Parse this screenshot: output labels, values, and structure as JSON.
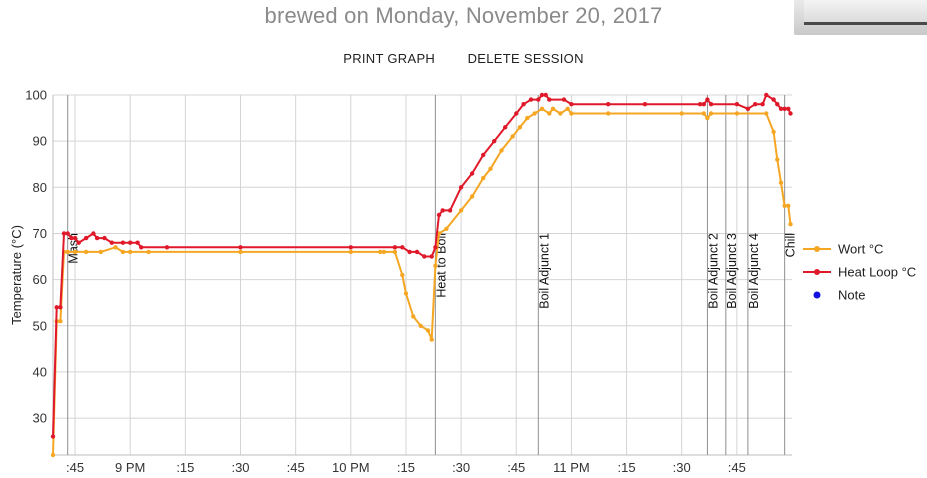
{
  "header": {
    "title": "brewed on Monday, November 20, 2017"
  },
  "actions": {
    "print_label": "PRINT GRAPH",
    "delete_label": "DELETE SESSION"
  },
  "chart_data": {
    "type": "line",
    "ylabel": "Temperature (°C)",
    "ylim": [
      22,
      100
    ],
    "yticks": [
      30,
      40,
      50,
      60,
      70,
      80,
      90,
      100
    ],
    "xlim": [
      "20:39",
      "22:09"
    ],
    "xticks": [
      {
        "t": "20:45",
        "label": ":45"
      },
      {
        "t": "21:00",
        "label": "9 PM"
      },
      {
        "t": "21:15",
        "label": ":15"
      },
      {
        "t": "21:30",
        "label": ":30"
      },
      {
        "t": "21:45",
        "label": ":45"
      },
      {
        "t": "22:00",
        "label": "10 PM"
      },
      {
        "t": "22:15",
        "label": ":15"
      },
      {
        "t": "22:30",
        "label": ":30"
      },
      {
        "t": "22:45",
        "label": ":45"
      },
      {
        "t": "23:00",
        "label": "11 PM"
      },
      {
        "t": "23:15",
        "label": ":15"
      },
      {
        "t": "23:30",
        "label": ":30"
      },
      {
        "t": "23:45",
        "label": ":45"
      }
    ],
    "grid": true,
    "legend_position": "right",
    "legend": [
      {
        "label": "Wort °C",
        "color": "#f5a623",
        "marker": "line-dot"
      },
      {
        "label": "Heat Loop °C",
        "color": "#e0192a",
        "marker": "line-dot"
      },
      {
        "label": "Note",
        "color": "#1010e0",
        "marker": "dot"
      }
    ],
    "annotations": [
      {
        "t": "20:43",
        "label": "Mash"
      },
      {
        "t": "22:23",
        "label": "Heat to Boil"
      },
      {
        "t": "22:51",
        "label": "Boil Adjunct 1"
      },
      {
        "t": "23:37",
        "label": "Boil Adjunct 2"
      },
      {
        "t": "23:42",
        "label": "Boil Adjunct 3"
      },
      {
        "t": "23:48",
        "label": "Boil Adjunct 4"
      },
      {
        "t": "23:58",
        "label": "Chill"
      }
    ],
    "series": [
      {
        "name": "Wort °C",
        "color": "#f5a623",
        "points": [
          [
            "20:39",
            22
          ],
          [
            "20:40",
            51
          ],
          [
            "20:41",
            51
          ],
          [
            "20:42",
            66
          ],
          [
            "20:43",
            66
          ],
          [
            "20:45",
            66
          ],
          [
            "20:48",
            66
          ],
          [
            "20:52",
            66
          ],
          [
            "20:56",
            67
          ],
          [
            "20:58",
            66
          ],
          [
            "21:00",
            66
          ],
          [
            "21:05",
            66
          ],
          [
            "21:30",
            66
          ],
          [
            "22:00",
            66
          ],
          [
            "22:08",
            66
          ],
          [
            "22:09",
            66
          ],
          [
            "22:12",
            66
          ],
          [
            "22:14",
            61
          ],
          [
            "22:15",
            57
          ],
          [
            "22:17",
            52
          ],
          [
            "22:19",
            50
          ],
          [
            "22:21",
            49
          ],
          [
            "22:22",
            47
          ],
          [
            "22:23",
            63
          ],
          [
            "22:24",
            70
          ],
          [
            "22:26",
            71
          ],
          [
            "22:30",
            75
          ],
          [
            "22:33",
            78
          ],
          [
            "22:36",
            82
          ],
          [
            "22:38",
            84
          ],
          [
            "22:41",
            88
          ],
          [
            "22:44",
            91
          ],
          [
            "22:46",
            93
          ],
          [
            "22:48",
            95
          ],
          [
            "22:50",
            96
          ],
          [
            "22:52",
            97
          ],
          [
            "22:54",
            96
          ],
          [
            "22:55",
            97
          ],
          [
            "22:57",
            96
          ],
          [
            "22:59",
            97
          ],
          [
            "23:00",
            96
          ],
          [
            "23:10",
            96
          ],
          [
            "23:30",
            96
          ],
          [
            "23:36",
            96
          ],
          [
            "23:37",
            95
          ],
          [
            "23:38",
            96
          ],
          [
            "23:45",
            96
          ],
          [
            "23:53",
            96
          ],
          [
            "23:55",
            92
          ],
          [
            "23:56",
            86
          ],
          [
            "23:57",
            81
          ],
          [
            "23:58",
            76
          ],
          [
            "23:59",
            76
          ],
          [
            "23:59.6",
            72
          ]
        ]
      },
      {
        "name": "Heat Loop °C",
        "color": "#e0192a",
        "points": [
          [
            "20:39",
            26
          ],
          [
            "20:40",
            54
          ],
          [
            "20:41",
            54
          ],
          [
            "20:42",
            70
          ],
          [
            "20:43",
            70
          ],
          [
            "20:44",
            69
          ],
          [
            "20:45",
            69
          ],
          [
            "20:46",
            68
          ],
          [
            "20:48",
            69
          ],
          [
            "20:50",
            70
          ],
          [
            "20:51",
            69
          ],
          [
            "20:53",
            69
          ],
          [
            "20:55",
            68
          ],
          [
            "20:58",
            68
          ],
          [
            "21:00",
            68
          ],
          [
            "21:02",
            68
          ],
          [
            "21:03",
            67
          ],
          [
            "21:10",
            67
          ],
          [
            "21:30",
            67
          ],
          [
            "22:00",
            67
          ],
          [
            "22:12",
            67
          ],
          [
            "22:14",
            67
          ],
          [
            "22:16",
            66
          ],
          [
            "22:18",
            66
          ],
          [
            "22:20",
            65
          ],
          [
            "22:22",
            65
          ],
          [
            "22:23",
            67
          ],
          [
            "22:24",
            74
          ],
          [
            "22:25",
            75
          ],
          [
            "22:27",
            75
          ],
          [
            "22:30",
            80
          ],
          [
            "22:33",
            83
          ],
          [
            "22:36",
            87
          ],
          [
            "22:39",
            90
          ],
          [
            "22:42",
            93
          ],
          [
            "22:45",
            96
          ],
          [
            "22:47",
            98
          ],
          [
            "22:49",
            99
          ],
          [
            "22:51",
            99
          ],
          [
            "22:52",
            100
          ],
          [
            "22:53",
            100
          ],
          [
            "22:54",
            99
          ],
          [
            "22:58",
            99
          ],
          [
            "23:00",
            98
          ],
          [
            "23:10",
            98
          ],
          [
            "23:20",
            98
          ],
          [
            "23:35",
            98
          ],
          [
            "23:36",
            98
          ],
          [
            "23:37",
            99
          ],
          [
            "23:38",
            98
          ],
          [
            "23:45",
            98
          ],
          [
            "23:48",
            97
          ],
          [
            "23:50",
            98
          ],
          [
            "23:52",
            98
          ],
          [
            "23:53",
            100
          ],
          [
            "23:55",
            99
          ],
          [
            "23:56",
            98
          ],
          [
            "23:57",
            97
          ],
          [
            "23:58",
            97
          ],
          [
            "23:59",
            97
          ],
          [
            "23:59.6",
            96
          ]
        ]
      }
    ]
  }
}
